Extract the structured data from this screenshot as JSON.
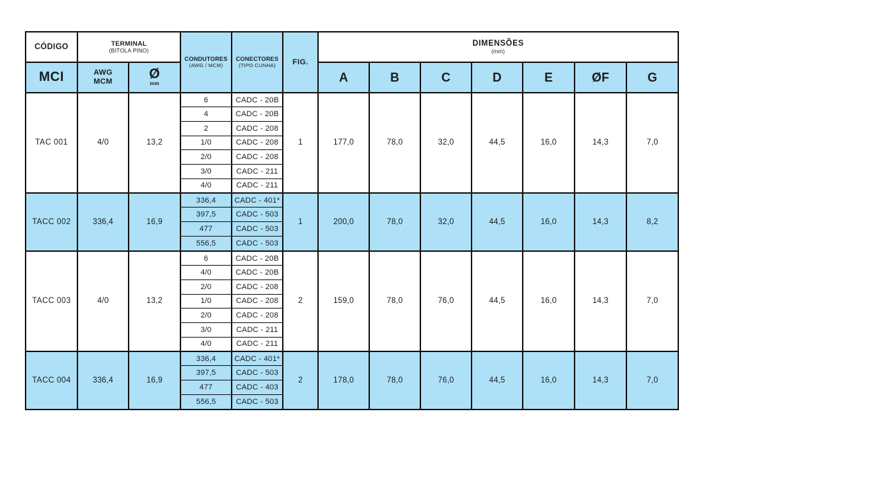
{
  "page": {
    "background": "#ffffff"
  },
  "table": {
    "colors": {
      "highlight": "#AEE1F8",
      "border": "#141414",
      "text": "#1d1d1f"
    },
    "header": {
      "codigo": "CÓDIGO",
      "terminal_title": "TERMINAL",
      "terminal_sub": "(BITOLA PINO)",
      "condutores_title": "CONDUTORES",
      "condutores_sub": "(AWG / MCM)",
      "conectores_title": "CONECTORES",
      "conectores_sub": "(TIPO CUNHA)",
      "fig": "FIG.",
      "dimensoes_title": "DIMENSÕES",
      "dimensoes_sub": "(mm)",
      "mci": "MCI",
      "awg_line1": "AWG",
      "awg_line2": "MCM",
      "diameter_symbol": "Ø",
      "diameter_unit": "mm",
      "dim_cols": [
        "A",
        "B",
        "C",
        "D",
        "E",
        "ØF",
        "G"
      ]
    },
    "rows": [
      {
        "code": "TAC 001",
        "awg": "4/0",
        "diameter": "13,2",
        "fig": "1",
        "highlight": false,
        "conductors": [
          {
            "size": "6",
            "connector": "CADC - 20B"
          },
          {
            "size": "4",
            "connector": "CADC - 20B"
          },
          {
            "size": "2",
            "connector": "CADC - 208"
          },
          {
            "size": "1/0",
            "connector": "CADC - 208"
          },
          {
            "size": "2/0",
            "connector": "CADC - 208"
          },
          {
            "size": "3/0",
            "connector": "CADC - 211"
          },
          {
            "size": "4/0",
            "connector": "CADC - 211"
          }
        ],
        "dims": [
          "177,0",
          "78,0",
          "32,0",
          "44,5",
          "16,0",
          "14,3",
          "7,0"
        ]
      },
      {
        "code": "TACC 002",
        "awg": "336,4",
        "diameter": "16,9",
        "fig": "1",
        "highlight": true,
        "conductors": [
          {
            "size": "336,4",
            "connector": "CADC - 401*"
          },
          {
            "size": "397,5",
            "connector": "CADC - 503"
          },
          {
            "size": "477",
            "connector": "CADC - 503"
          },
          {
            "size": "556,5",
            "connector": "CADC - 503"
          }
        ],
        "dims": [
          "200,0",
          "78,0",
          "32,0",
          "44,5",
          "16,0",
          "14,3",
          "8,2"
        ]
      },
      {
        "code": "TACC 003",
        "awg": "4/0",
        "diameter": "13,2",
        "fig": "2",
        "highlight": false,
        "conductors": [
          {
            "size": "6",
            "connector": "CADC - 20B"
          },
          {
            "size": "4/0",
            "connector": "CADC - 20B"
          },
          {
            "size": "2/0",
            "connector": "CADC - 208"
          },
          {
            "size": "1/0",
            "connector": "CADC - 208"
          },
          {
            "size": "2/0",
            "connector": "CADC - 208"
          },
          {
            "size": "3/0",
            "connector": "CADC - 211"
          },
          {
            "size": "4/0",
            "connector": "CADC - 211"
          }
        ],
        "dims": [
          "159,0",
          "78,0",
          "76,0",
          "44,5",
          "16,0",
          "14,3",
          "7,0"
        ]
      },
      {
        "code": "TACC 004",
        "awg": "336,4",
        "diameter": "16,9",
        "fig": "2",
        "highlight": true,
        "conductors": [
          {
            "size": "336,4",
            "connector": "CADC - 401*"
          },
          {
            "size": "397,5",
            "connector": "CADC - 503"
          },
          {
            "size": "477",
            "connector": "CADC - 403"
          },
          {
            "size": "556,5",
            "connector": "CADC - 503"
          }
        ],
        "dims": [
          "178,0",
          "78,0",
          "76,0",
          "44,5",
          "16,0",
          "14,3",
          "7,0"
        ]
      }
    ]
  }
}
